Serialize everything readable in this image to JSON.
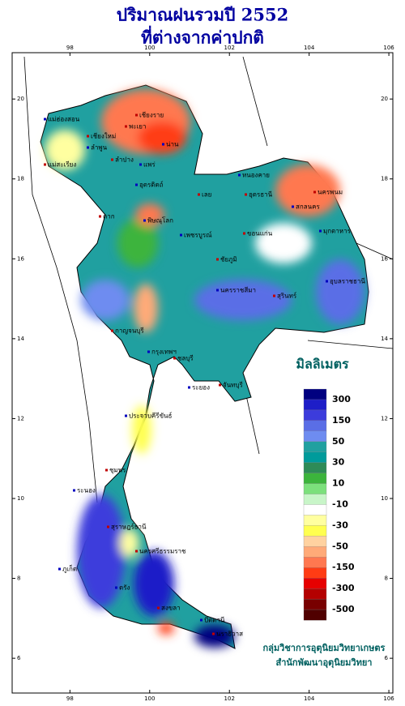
{
  "title": [
    "ปริมาณฝนรวมปี  2552",
    "ที่ต่างจากค่าปกติ"
  ],
  "map": {
    "xticks": [
      98,
      100,
      102,
      104,
      106
    ],
    "yticks": [
      6,
      8,
      10,
      12,
      14,
      16,
      18,
      20
    ],
    "xlim": [
      96.55,
      106.1
    ],
    "ylim": [
      5.13,
      21.16
    ]
  },
  "legend": {
    "title": "มิลลิเมตร",
    "colors": [
      "#000080",
      "#1e1ec8",
      "#3c3cdc",
      "#5a6ee6",
      "#6e8cf0",
      "#20a0a0",
      "#009b9b",
      "#2e8b57",
      "#3cb43c",
      "#7ce07c",
      "#c8f5c8",
      "#ffffff",
      "#ffffa0",
      "#ffff50",
      "#ffd2a0",
      "#ffaa78",
      "#ff7850",
      "#ff3c14",
      "#e60000",
      "#b40000",
      "#780000",
      "#500000"
    ],
    "labels": [
      "300",
      "150",
      "50",
      "30",
      "10",
      "-10",
      "-30",
      "-50",
      "-150",
      "-300",
      "-500"
    ]
  },
  "places": [
    "เชียงราย",
    "แม่ฮ่องสอน",
    "เชียงใหม่",
    "ลำพูน",
    "พะเยา",
    "น่าน",
    "ลำปาง",
    "แพร่",
    "แม่สะเรียง",
    "อุตรดิตถ์",
    "ตาก",
    "พิษณุโลก",
    "เลย",
    "หนองคาย",
    "อุดรธานี",
    "สกลนคร",
    "นครพนม",
    "มุกดาหาร",
    "ขอนแก่น",
    "เพชรบูรณ์",
    "ชัยภูมิ",
    "นครราชสีมา",
    "สุรินทร์",
    "อุบลราชธานี",
    "กาญจนบุรี",
    "กรุงเทพฯ",
    "ชลบุรี",
    "ระยอง",
    "จันทบุรี",
    "ประจวบคีรีขันธ์",
    "ชุมพร",
    "ระนอง",
    "สุราษฎร์ธานี",
    "ภูเก็ต",
    "นครศรีธรรมราช",
    "ตรัง",
    "สงขลา",
    "ปัตตานี",
    "นราธิวาส"
  ],
  "credits": [
    "กลุ่มวิชาการอุตุนิยมวิทยาเกษตร",
    "สำนักพัฒนาอุตุนิยมวิทยา"
  ]
}
